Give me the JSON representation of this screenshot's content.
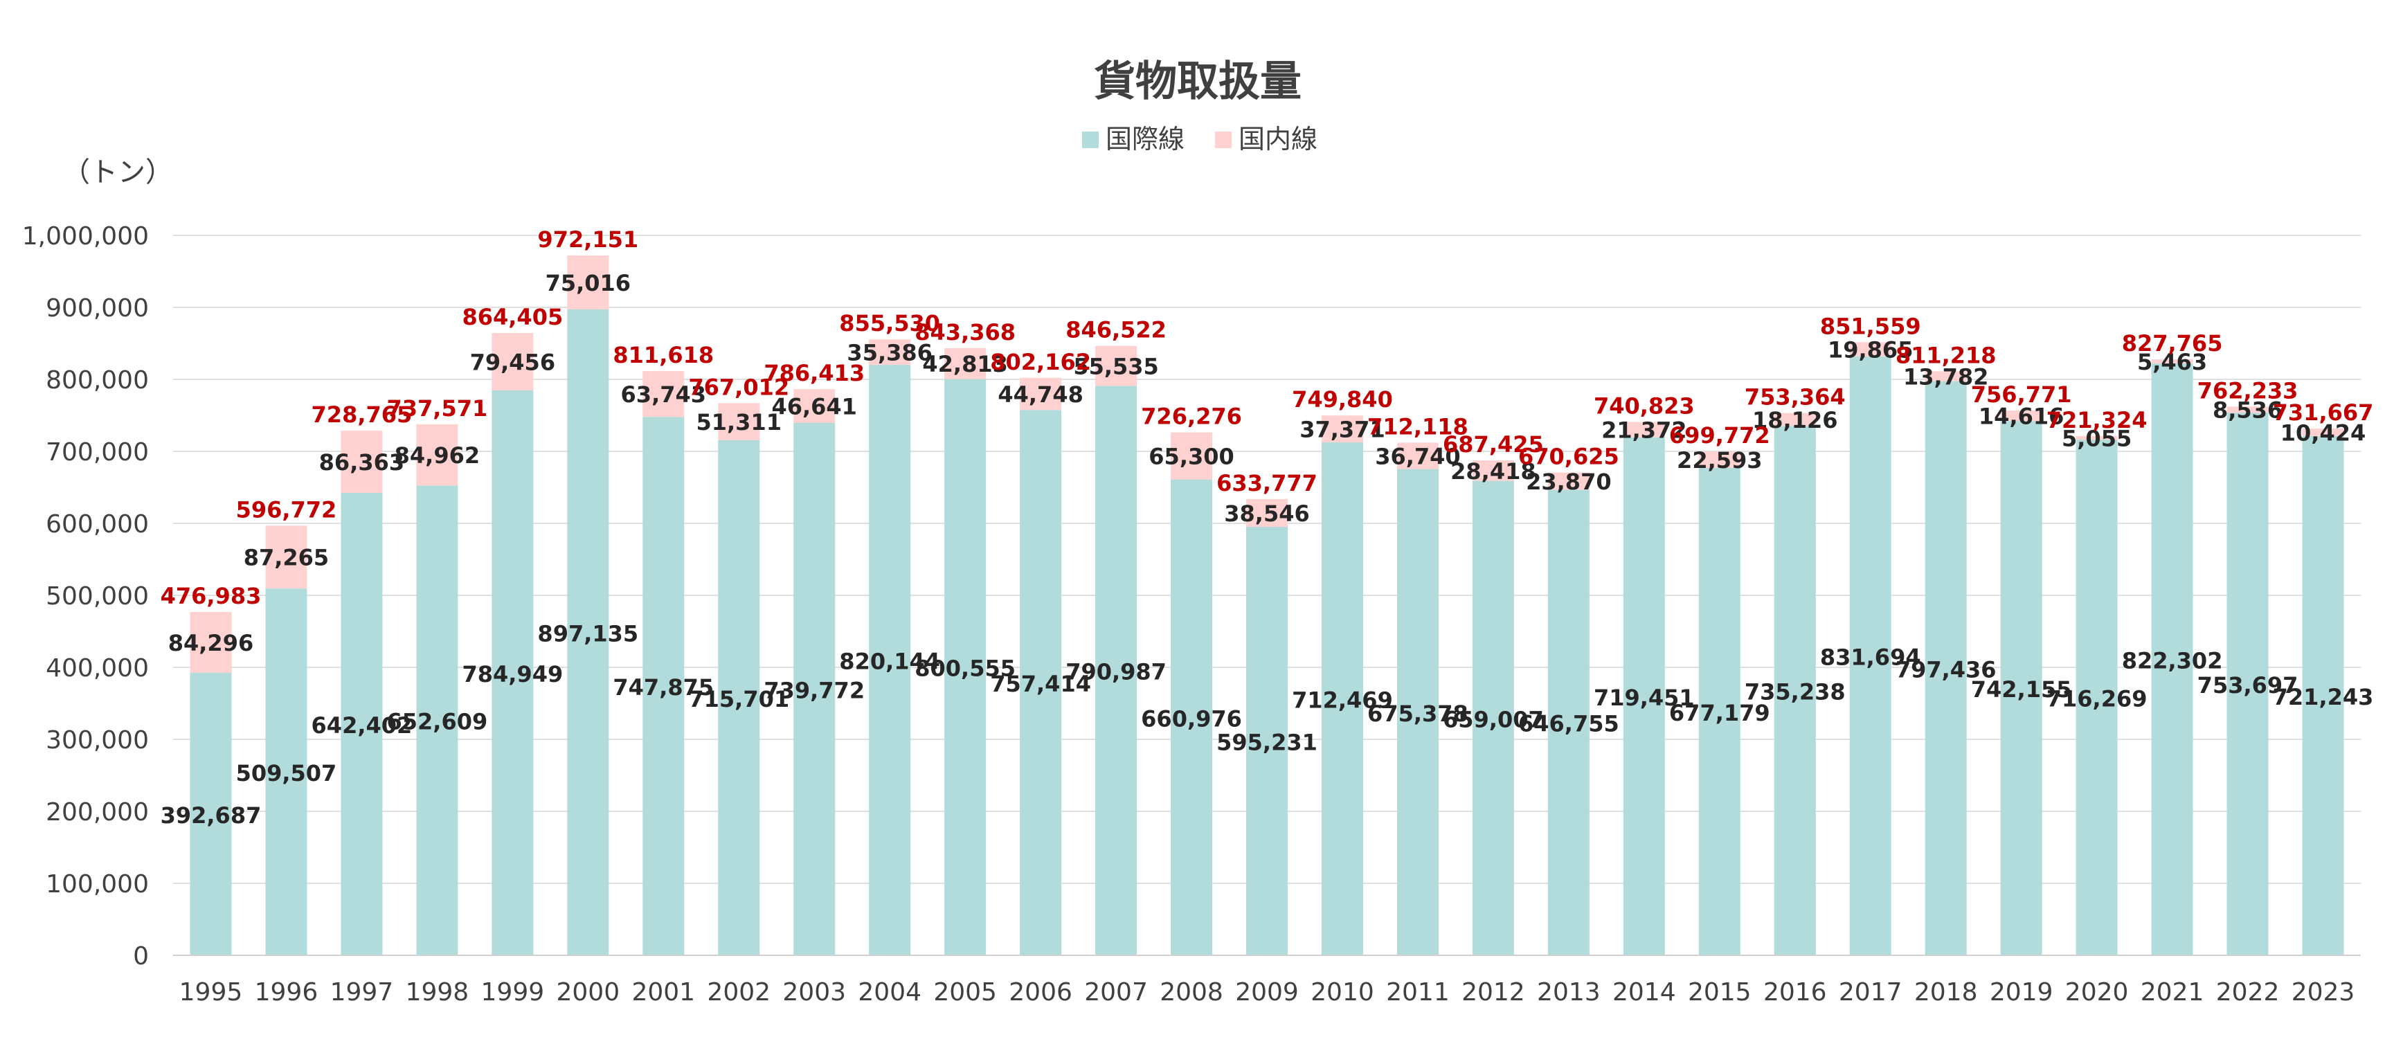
{
  "chart_data": {
    "type": "bar",
    "stacked": true,
    "title": "貨物取扱量",
    "unit_label": "（トン）",
    "categories": [
      "1995",
      "1996",
      "1997",
      "1998",
      "1999",
      "2000",
      "2001",
      "2002",
      "2003",
      "2004",
      "2005",
      "2006",
      "2007",
      "2008",
      "2009",
      "2010",
      "2011",
      "2012",
      "2013",
      "2014",
      "2015",
      "2016",
      "2017",
      "2018",
      "2019",
      "2020",
      "2021",
      "2022",
      "2023"
    ],
    "series": [
      {
        "name": "国際線",
        "color": "#b2dcdc",
        "values": [
          392687,
          509507,
          642402,
          652609,
          784949,
          897135,
          747875,
          715701,
          739772,
          820144,
          800555,
          757414,
          790987,
          660976,
          595231,
          712469,
          675378,
          659007,
          646755,
          719451,
          677179,
          735238,
          831694,
          797436,
          742155,
          716269,
          822302,
          753697,
          721243
        ],
        "labels": [
          "392,687",
          "509,507",
          "642,402",
          "652,609",
          "784,949",
          "897,135",
          "747,875",
          "715,701",
          "739,772",
          "820,144",
          "800,555",
          "757,414",
          "790,987",
          "660,976",
          "595,231",
          "712,469",
          "675,378",
          "659,007",
          "646,755",
          "719,451",
          "677,179",
          "735,238",
          "831,694",
          "797,436",
          "742,155",
          "716,269",
          "822,302",
          "753,697",
          "721,243"
        ]
      },
      {
        "name": "国内線",
        "color": "#ffd1d1",
        "values": [
          84296,
          87265,
          86363,
          84962,
          79456,
          75016,
          63743,
          51311,
          46641,
          35386,
          42813,
          44748,
          55535,
          65300,
          38546,
          37371,
          36740,
          28418,
          23870,
          21372,
          22593,
          18126,
          19865,
          13782,
          14616,
          5055,
          5463,
          8536,
          10424
        ],
        "labels": [
          "84,296",
          "87,265",
          "86,363",
          "84,962",
          "79,456",
          "75,016",
          "63,743",
          "51,311",
          "46,641",
          "35,386",
          "42,813",
          "44,748",
          "55,535",
          "65,300",
          "38,546",
          "37,371",
          "36,740",
          "28,418",
          "23,870",
          "21,372",
          "22,593",
          "18,126",
          "19,865",
          "13,782",
          "14,616",
          "5,055",
          "5,463",
          "8,536",
          "10,424"
        ]
      }
    ],
    "totals": [
      476983,
      596772,
      728765,
      737571,
      864405,
      972151,
      811618,
      767012,
      786413,
      855530,
      843368,
      802162,
      846522,
      726276,
      633777,
      749840,
      712118,
      687425,
      670625,
      740823,
      699772,
      753364,
      851559,
      811218,
      756771,
      721324,
      827765,
      762233,
      731667
    ],
    "total_labels": [
      "476,983",
      "596,772",
      "728,765",
      "737,571",
      "864,405",
      "972,151",
      "811,618",
      "767,012",
      "786,413",
      "855,530",
      "843,368",
      "802,162",
      "846,522",
      "726,276",
      "633,777",
      "749,840",
      "712,118",
      "687,425",
      "670,625",
      "740,823",
      "699,772",
      "753,364",
      "851,559",
      "811,218",
      "756,771",
      "721,324",
      "827,765",
      "762,233",
      "731,667"
    ],
    "ylim": [
      0,
      1000000
    ],
    "yticks": [
      0,
      100000,
      200000,
      300000,
      400000,
      500000,
      600000,
      700000,
      800000,
      900000,
      1000000
    ],
    "ytick_labels": [
      "0",
      "100,000",
      "200,000",
      "300,000",
      "400,000",
      "500,000",
      "600,000",
      "700,000",
      "800,000",
      "900,000",
      "1,000,000"
    ],
    "grid": true,
    "legend_position": "top-center",
    "total_label_color": "#c00000",
    "segment_label_color": "#262626",
    "axis_text_color": "#404040",
    "gridline_color": "#e0e0e0"
  }
}
